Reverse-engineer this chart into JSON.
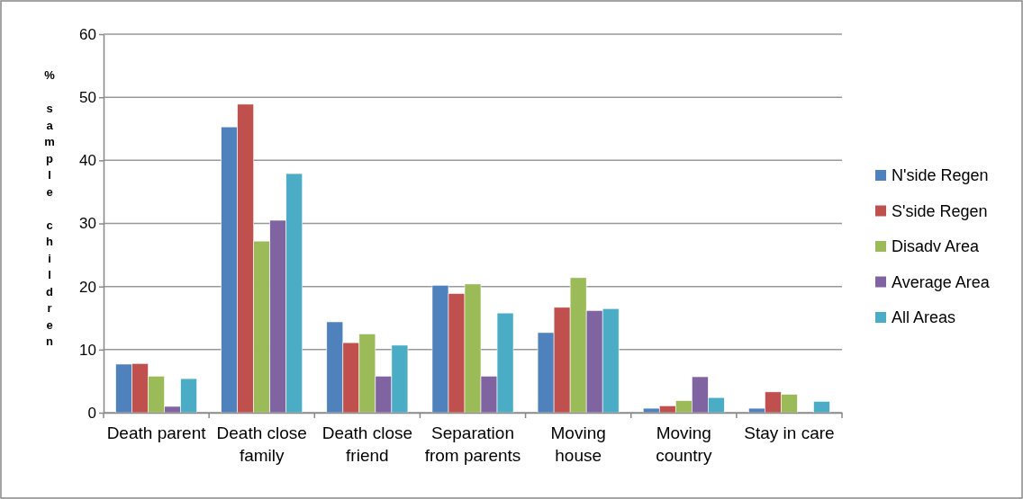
{
  "chart_data": {
    "type": "bar",
    "ylabel": "% sample children",
    "categories": [
      "Death parent",
      "Death close family",
      "Death close friend",
      "Separation from parents",
      "Moving house",
      "Moving country",
      "Stay in care"
    ],
    "series": [
      {
        "name": "N'side Regen",
        "color": "#4f81bd",
        "values": [
          7.7,
          45.3,
          14.4,
          20.2,
          12.7,
          0.7,
          0.7
        ]
      },
      {
        "name": "S'side Regen",
        "color": "#c0504d",
        "values": [
          7.8,
          48.9,
          11.1,
          18.9,
          16.7,
          1.1,
          3.3
        ]
      },
      {
        "name": "Disadv Area",
        "color": "#9bbb59",
        "values": [
          5.8,
          27.2,
          12.5,
          20.4,
          21.4,
          1.9,
          2.9
        ]
      },
      {
        "name": "Average Area",
        "color": "#8064a2",
        "values": [
          1.0,
          30.5,
          5.8,
          5.8,
          16.2,
          5.7,
          0
        ]
      },
      {
        "name": "All Areas",
        "color": "#4bacc6",
        "values": [
          5.4,
          37.9,
          10.7,
          15.8,
          16.5,
          2.4,
          1.8
        ]
      }
    ],
    "ylim": [
      0,
      60
    ],
    "yticks": [
      0,
      10,
      20,
      30,
      40,
      50,
      60
    ],
    "grid": "y",
    "legend": "right"
  }
}
